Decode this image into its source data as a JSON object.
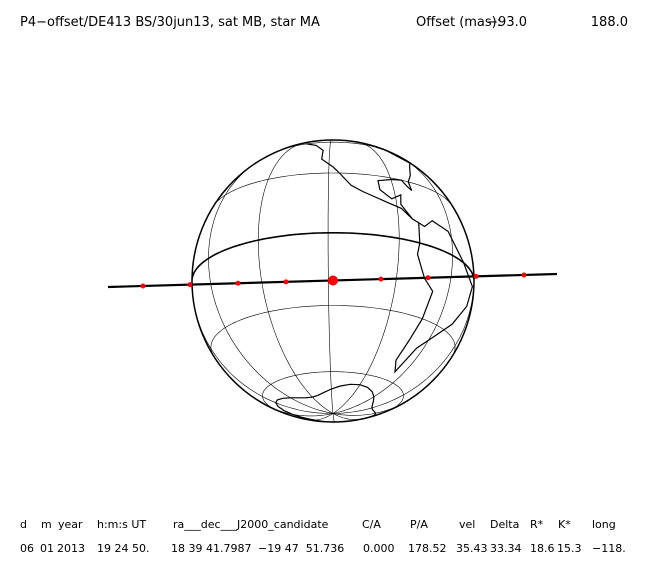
{
  "header": {
    "title": "P4−offset/DE413 BS/30jun13, sat MB, star MA",
    "offset_label": "Offset (mas):",
    "offset_1": "−93.0",
    "offset_2": "188.0"
  },
  "table": {
    "header": [
      "d",
      "m",
      "year",
      "h:m:s UT",
      "ra___dec___J2000_candidate",
      "C/A",
      "P/A",
      "vel",
      "Delta",
      "R*",
      "K*",
      "long"
    ],
    "rows": [
      [
        "06",
        "01",
        "2013",
        "19 24 50.",
        "18 39 41.7987",
        "−19 47  51.736",
        "0.000",
        "178.52",
        "35.43",
        "33.34",
        "18.6",
        "15.3",
        "−118."
      ]
    ]
  }
}
